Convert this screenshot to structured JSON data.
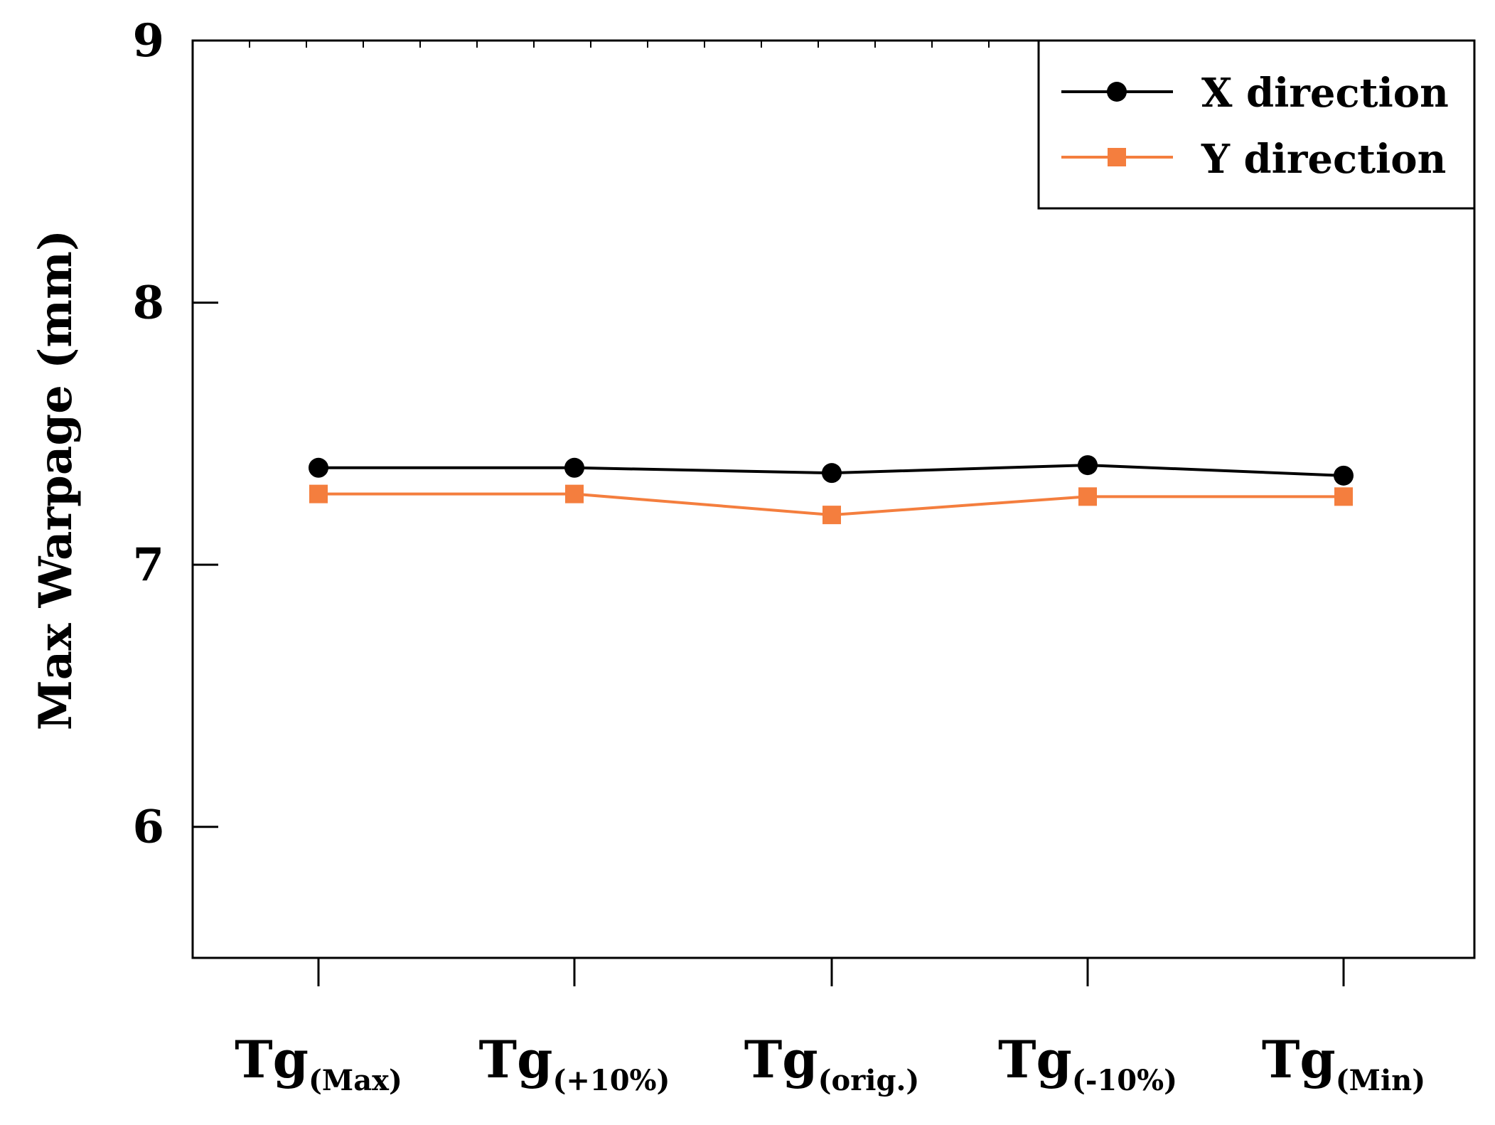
{
  "chart_data": {
    "type": "line",
    "title": "",
    "xlabel": "",
    "ylabel": "Max Warpage (mm)",
    "ylim": [
      5.5,
      9
    ],
    "yticks": [
      "6",
      "7",
      "8",
      "9"
    ],
    "categories": [
      {
        "main": "Tg",
        "sub": "(Max)"
      },
      {
        "main": "Tg",
        "sub": "(+10%)"
      },
      {
        "main": "Tg",
        "sub": "(orig.)"
      },
      {
        "main": "Tg",
        "sub": "(-10%)"
      },
      {
        "main": "Tg",
        "sub": "(Min)"
      }
    ],
    "series": [
      {
        "name": "X direction",
        "values": [
          7.37,
          7.37,
          7.35,
          7.38,
          7.34
        ],
        "color": "#000000",
        "marker": "circle"
      },
      {
        "name": "Y direction",
        "values": [
          7.27,
          7.27,
          7.19,
          7.26,
          7.26
        ],
        "color": "#f47e3e",
        "marker": "square"
      }
    ],
    "legend_position": "top-right"
  }
}
